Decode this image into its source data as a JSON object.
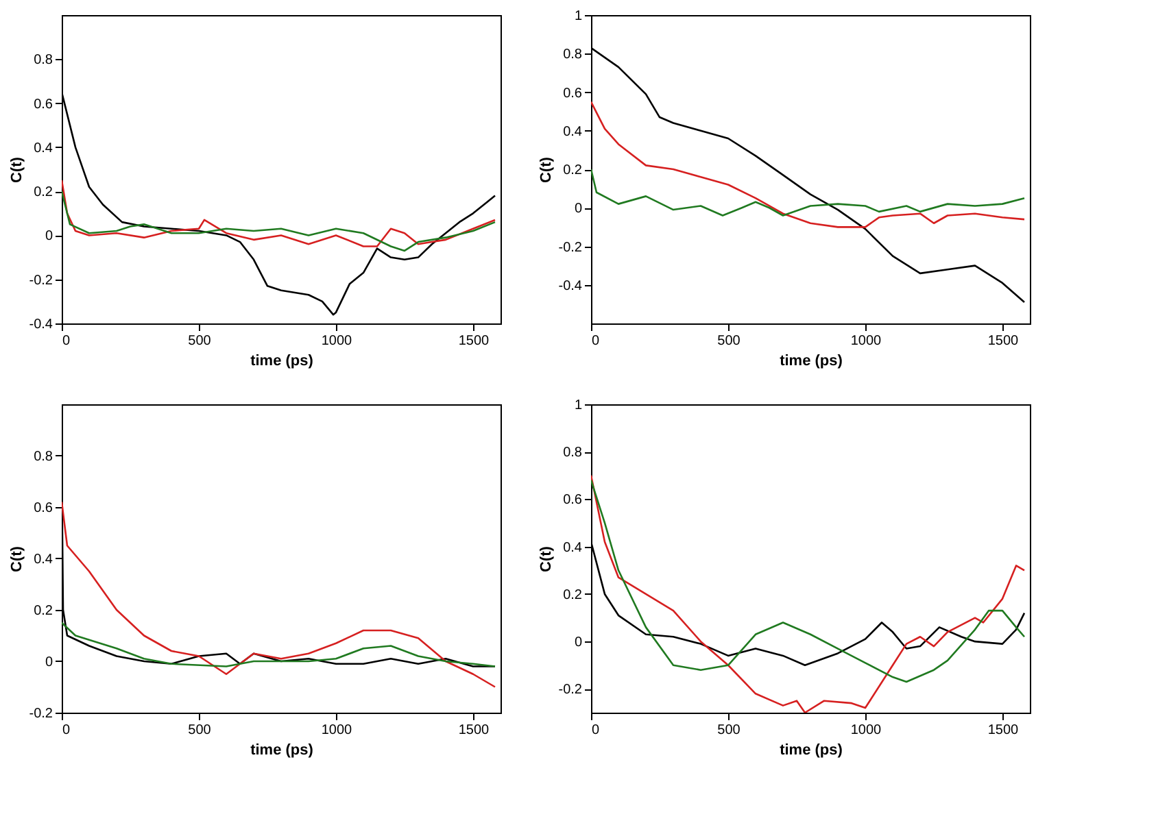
{
  "chart_data": [
    {
      "type": "line",
      "xlabel": "time (ps)",
      "ylabel": "C(t)",
      "xlim": [
        0,
        1600
      ],
      "xticks": [
        0,
        500,
        1000,
        1500
      ],
      "ylim": [
        -0.4,
        1.0
      ],
      "yticks": [
        -0.4,
        -0.2,
        0,
        0.2,
        0.4,
        0.6,
        0.8
      ],
      "grid": false,
      "legend": false,
      "line_style": "solid",
      "marker": "none",
      "series": [
        {
          "color": "#000000",
          "x": [
            0,
            10,
            50,
            100,
            150,
            220,
            300,
            400,
            500,
            600,
            650,
            700,
            750,
            800,
            900,
            950,
            990,
            1000,
            1050,
            1100,
            1150,
            1200,
            1250,
            1300,
            1350,
            1400,
            1450,
            1500,
            1550,
            1580
          ],
          "values": [
            0.65,
            0.6,
            0.4,
            0.22,
            0.14,
            0.06,
            0.04,
            0.03,
            0.02,
            0,
            -0.03,
            -0.11,
            -0.23,
            -0.25,
            -0.27,
            -0.3,
            -0.36,
            -0.35,
            -0.22,
            -0.17,
            -0.06,
            -0.1,
            -0.11,
            -0.1,
            -0.04,
            0.01,
            0.06,
            0.1,
            0.15,
            0.18
          ]
        },
        {
          "color": "#d62020",
          "x": [
            0,
            20,
            50,
            100,
            200,
            300,
            400,
            500,
            520,
            600,
            700,
            800,
            900,
            1000,
            1100,
            1150,
            1200,
            1250,
            1300,
            1350,
            1400,
            1500,
            1580
          ],
          "values": [
            0.25,
            0.1,
            0.02,
            0,
            0.01,
            -0.01,
            0.02,
            0.03,
            0.07,
            0.01,
            -0.02,
            0,
            -0.04,
            0,
            -0.05,
            -0.05,
            0.03,
            0.01,
            -0.04,
            -0.03,
            -0.02,
            0.03,
            0.07
          ]
        },
        {
          "color": "#207a20",
          "x": [
            0,
            30,
            100,
            200,
            250,
            300,
            400,
            500,
            600,
            700,
            800,
            900,
            1000,
            1100,
            1200,
            1250,
            1300,
            1400,
            1500,
            1580
          ],
          "values": [
            0.2,
            0.05,
            0.01,
            0.02,
            0.04,
            0.05,
            0.01,
            0.01,
            0.03,
            0.02,
            0.03,
            0,
            0.03,
            0.01,
            -0.05,
            -0.07,
            -0.03,
            -0.01,
            0.02,
            0.06
          ]
        }
      ]
    },
    {
      "type": "line",
      "xlabel": "time (ps)",
      "ylabel": "C(t)",
      "xlim": [
        0,
        1600
      ],
      "xticks": [
        0,
        500,
        1000,
        1500
      ],
      "ylim": [
        -0.6,
        1.0
      ],
      "yticks": [
        -0.4,
        -0.2,
        0,
        0.2,
        0.4,
        0.6,
        0.8,
        1
      ],
      "grid": false,
      "legend": false,
      "line_style": "solid",
      "marker": "none",
      "series": [
        {
          "color": "#000000",
          "x": [
            0,
            100,
            200,
            250,
            300,
            400,
            500,
            600,
            700,
            800,
            900,
            1000,
            1100,
            1200,
            1300,
            1400,
            1500,
            1580
          ],
          "values": [
            0.83,
            0.73,
            0.59,
            0.47,
            0.44,
            0.4,
            0.36,
            0.27,
            0.17,
            0.07,
            -0.01,
            -0.11,
            -0.25,
            -0.34,
            -0.32,
            -0.3,
            -0.39,
            -0.49
          ]
        },
        {
          "color": "#d62020",
          "x": [
            0,
            50,
            100,
            200,
            300,
            400,
            500,
            600,
            700,
            800,
            900,
            1000,
            1050,
            1100,
            1200,
            1250,
            1300,
            1400,
            1500,
            1580
          ],
          "values": [
            0.55,
            0.41,
            0.33,
            0.22,
            0.2,
            0.16,
            0.12,
            0.05,
            -0.03,
            -0.08,
            -0.1,
            -0.1,
            -0.05,
            -0.04,
            -0.03,
            -0.08,
            -0.04,
            -0.03,
            -0.05,
            -0.06
          ]
        },
        {
          "color": "#207a20",
          "x": [
            0,
            20,
            100,
            200,
            300,
            400,
            480,
            550,
            600,
            650,
            700,
            800,
            900,
            1000,
            1050,
            1150,
            1200,
            1300,
            1400,
            1500,
            1580
          ],
          "values": [
            0.2,
            0.08,
            0.02,
            0.06,
            -0.01,
            0.01,
            -0.04,
            0,
            0.03,
            0,
            -0.04,
            0.01,
            0.02,
            0.01,
            -0.02,
            0.01,
            -0.02,
            0.02,
            0.01,
            0.02,
            0.05
          ]
        }
      ]
    },
    {
      "type": "line",
      "xlabel": "time (ps)",
      "ylabel": "C(t)",
      "xlim": [
        0,
        1600
      ],
      "xticks": [
        0,
        500,
        1000,
        1500
      ],
      "ylim": [
        -0.2,
        1.0
      ],
      "yticks": [
        -0.2,
        0,
        0.2,
        0.4,
        0.6,
        0.8
      ],
      "grid": false,
      "legend": false,
      "line_style": "solid",
      "marker": "none",
      "series": [
        {
          "color": "#000000",
          "x": [
            0,
            5,
            20,
            100,
            200,
            300,
            400,
            500,
            600,
            650,
            700,
            800,
            900,
            1000,
            1100,
            1200,
            1300,
            1400,
            1500,
            1580
          ],
          "values": [
            0.75,
            0.2,
            0.1,
            0.06,
            0.02,
            0,
            -0.01,
            0.02,
            0.03,
            -0.01,
            0.03,
            0,
            0.01,
            -0.01,
            -0.01,
            0.01,
            -0.01,
            0.01,
            -0.02,
            -0.02
          ]
        },
        {
          "color": "#d62020",
          "x": [
            0,
            20,
            100,
            200,
            300,
            400,
            500,
            600,
            700,
            800,
            900,
            1000,
            1100,
            1200,
            1300,
            1400,
            1500,
            1580
          ],
          "values": [
            0.62,
            0.45,
            0.35,
            0.2,
            0.1,
            0.04,
            0.02,
            -0.05,
            0.03,
            0.01,
            0.03,
            0.07,
            0.12,
            0.12,
            0.09,
            0,
            -0.05,
            -0.1
          ]
        },
        {
          "color": "#207a20",
          "x": [
            0,
            50,
            200,
            300,
            400,
            600,
            700,
            800,
            900,
            1000,
            1100,
            1200,
            1300,
            1400,
            1500,
            1580
          ],
          "values": [
            0.15,
            0.1,
            0.05,
            0.01,
            -0.01,
            -0.02,
            0,
            0,
            0,
            0.01,
            0.05,
            0.06,
            0.02,
            0,
            -0.01,
            -0.02
          ]
        }
      ]
    },
    {
      "type": "line",
      "xlabel": "time (ps)",
      "ylabel": "C(t)",
      "xlim": [
        0,
        1600
      ],
      "xticks": [
        0,
        500,
        1000,
        1500
      ],
      "ylim": [
        -0.3,
        1.0
      ],
      "yticks": [
        -0.2,
        0,
        0.2,
        0.4,
        0.6,
        0.8,
        1
      ],
      "grid": false,
      "legend": false,
      "line_style": "solid",
      "marker": "none",
      "series": [
        {
          "color": "#000000",
          "x": [
            0,
            50,
            100,
            200,
            300,
            400,
            500,
            600,
            700,
            780,
            900,
            1000,
            1060,
            1100,
            1150,
            1200,
            1270,
            1350,
            1400,
            1500,
            1550,
            1580
          ],
          "values": [
            0.42,
            0.2,
            0.11,
            0.03,
            0.02,
            -0.01,
            -0.06,
            -0.03,
            -0.06,
            -0.1,
            -0.05,
            0.01,
            0.08,
            0.04,
            -0.03,
            -0.02,
            0.06,
            0.02,
            0,
            -0.01,
            0.05,
            0.12
          ]
        },
        {
          "color": "#d62020",
          "x": [
            0,
            50,
            100,
            200,
            300,
            400,
            500,
            600,
            700,
            750,
            780,
            850,
            950,
            1000,
            1100,
            1150,
            1200,
            1250,
            1300,
            1400,
            1430,
            1500,
            1550,
            1580
          ],
          "values": [
            0.7,
            0.42,
            0.27,
            0.2,
            0.13,
            0,
            -0.1,
            -0.22,
            -0.27,
            -0.25,
            -0.3,
            -0.25,
            -0.26,
            -0.28,
            -0.1,
            -0.01,
            0.02,
            -0.02,
            0.04,
            0.1,
            0.08,
            0.18,
            0.32,
            0.3
          ]
        },
        {
          "color": "#207a20",
          "x": [
            0,
            50,
            100,
            200,
            300,
            400,
            500,
            600,
            700,
            800,
            900,
            1000,
            1100,
            1150,
            1250,
            1300,
            1400,
            1450,
            1500,
            1550,
            1580
          ],
          "values": [
            0.68,
            0.5,
            0.3,
            0.06,
            -0.1,
            -0.12,
            -0.1,
            0.03,
            0.08,
            0.03,
            -0.03,
            -0.09,
            -0.15,
            -0.17,
            -0.12,
            -0.08,
            0.05,
            0.13,
            0.13,
            0.06,
            0.02
          ]
        }
      ]
    }
  ]
}
